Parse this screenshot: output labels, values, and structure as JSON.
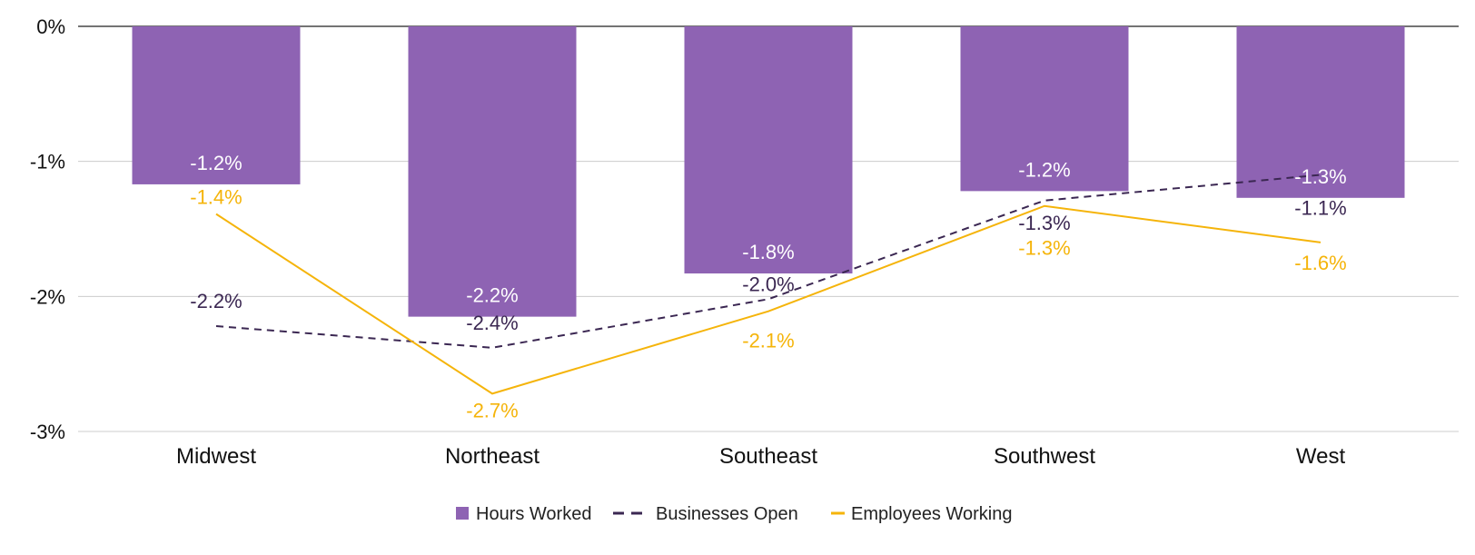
{
  "chart_data": {
    "type": "bar",
    "title": "",
    "xlabel": "",
    "ylabel": "",
    "ylim": [
      -3,
      0
    ],
    "y_ticks": [
      0,
      -1,
      -2,
      -3
    ],
    "y_tick_labels": [
      "0%",
      "-1%",
      "-2%",
      "-3%"
    ],
    "grid": true,
    "legend_position": "bottom",
    "categories": [
      "Midwest",
      "Northeast",
      "Southeast",
      "Southwest",
      "West"
    ],
    "series": [
      {
        "name": "Hours Worked",
        "kind": "bar",
        "color": "#8e63b3",
        "values": [
          -1.17,
          -2.15,
          -1.83,
          -1.22,
          -1.27
        ],
        "labels": [
          "-1.2%",
          "-2.2%",
          "-1.8%",
          "-1.2%",
          "-1.3%"
        ],
        "label_color": "#ffffff"
      },
      {
        "name": "Businesses Open",
        "kind": "line",
        "dash": true,
        "color": "#3b2752",
        "values": [
          -2.22,
          -2.38,
          -2.02,
          -1.29,
          -1.1
        ],
        "labels": [
          "-2.2%",
          "-2.4%",
          "-2.0%",
          "-1.3%",
          "-1.1%"
        ],
        "label_color": "#3b2752"
      },
      {
        "name": "Employees Working",
        "kind": "line",
        "dash": false,
        "color": "#f5b40a",
        "values": [
          -1.39,
          -2.72,
          -2.11,
          -1.33,
          -1.6
        ],
        "labels": [
          "-1.4%",
          "-2.7%",
          "-2.1%",
          "-1.3%",
          "-1.6%"
        ],
        "label_color": "#f5b40a"
      }
    ]
  }
}
